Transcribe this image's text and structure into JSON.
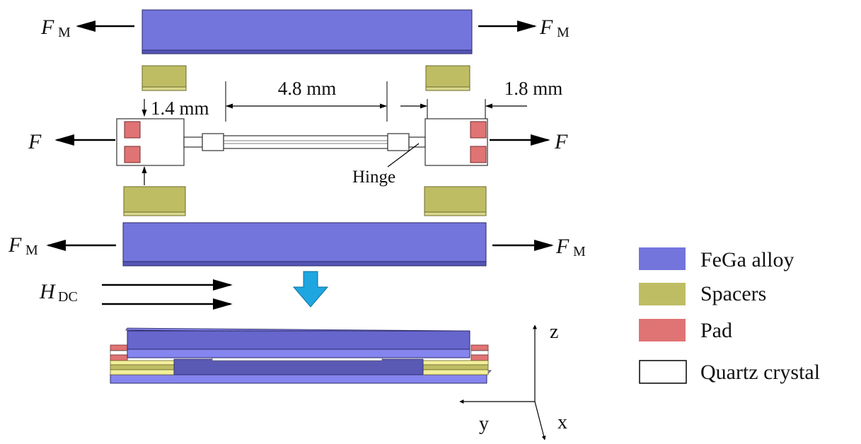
{
  "labels": {
    "force_m": {
      "main": "F",
      "sub": "M"
    },
    "force": "F",
    "h_dc": {
      "main": "H",
      "sub": "DC"
    },
    "hinge": "Hinge"
  },
  "dimensions": {
    "left_pad_gap": "1.4 mm",
    "beam_length": "4.8 mm",
    "right_gap": "1.8 mm"
  },
  "axes": {
    "z": "z",
    "y": "y",
    "x": "x"
  },
  "legend": [
    {
      "label": "FeGa alloy",
      "color": "#7474dd"
    },
    {
      "label": "Spacers",
      "color": "#bfbd64"
    },
    {
      "label": "Pad",
      "color": "#e07474"
    },
    {
      "label": "Quartz crystal",
      "color": "#ffffff"
    }
  ],
  "colors": {
    "fega": "#7474dd",
    "spacer": "#bfbd64",
    "pad": "#e07474",
    "arrow_blue": "#1ea6e0"
  }
}
